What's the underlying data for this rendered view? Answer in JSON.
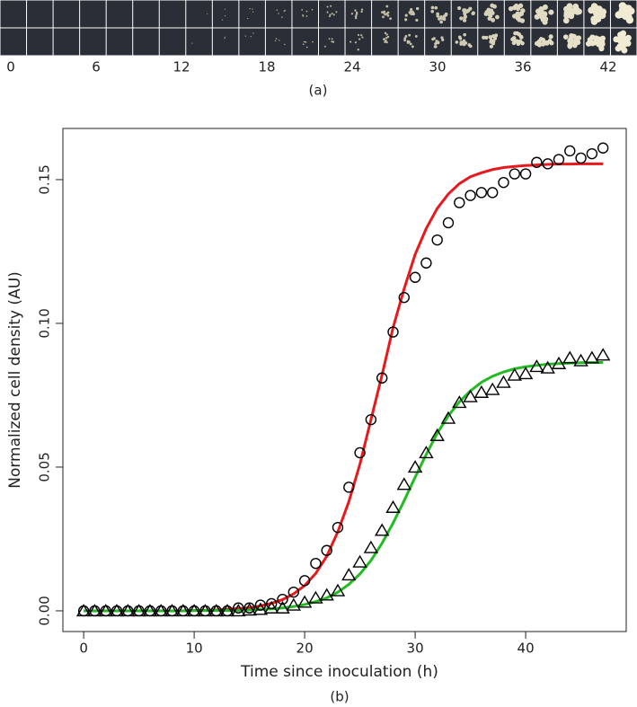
{
  "strip": {
    "labels": [
      "0",
      "6",
      "12",
      "18",
      "24",
      "30",
      "36",
      "42"
    ],
    "caption": "(a)"
  },
  "chart_data": {
    "type": "scatter",
    "caption": "(b)",
    "x_label": "Time since inoculation (h)",
    "y_label": "Normalized cell density (AU)",
    "x": [
      0,
      1,
      2,
      3,
      4,
      5,
      6,
      7,
      8,
      9,
      10,
      11,
      12,
      13,
      14,
      15,
      16,
      17,
      18,
      19,
      20,
      21,
      22,
      23,
      24,
      25,
      26,
      27,
      28,
      29,
      30,
      31,
      32,
      33,
      34,
      35,
      36,
      37,
      38,
      39,
      40,
      41,
      42,
      43,
      44,
      45,
      46,
      47
    ],
    "series": [
      {
        "color": "#000000",
        "marker": "circle",
        "values": [
          0,
          0,
          0,
          0,
          0,
          0,
          0,
          0,
          0,
          0,
          0,
          0,
          0,
          0,
          0.001,
          0.001,
          0.002,
          0.0025,
          0.004,
          0.0065,
          0.0105,
          0.0165,
          0.021,
          0.029,
          0.043,
          0.055,
          0.0665,
          0.081,
          0.097,
          0.109,
          0.116,
          0.121,
          0.129,
          0.135,
          0.142,
          0.1445,
          0.1455,
          0.1455,
          0.149,
          0.152,
          0.152,
          0.156,
          0.1555,
          0.157,
          0.16,
          0.1575,
          0.159,
          0.161
        ]
      },
      {
        "color": "#000000",
        "marker": "triangle",
        "values": [
          0,
          0,
          0,
          0,
          0,
          0,
          0,
          0,
          0,
          0,
          0,
          0,
          0,
          0,
          0,
          0.0003,
          0.0005,
          0.001,
          0.001,
          0.002,
          0.003,
          0.0045,
          0.0055,
          0.007,
          0.0125,
          0.017,
          0.022,
          0.028,
          0.036,
          0.044,
          0.05,
          0.055,
          0.061,
          0.067,
          0.0725,
          0.0745,
          0.076,
          0.077,
          0.0795,
          0.082,
          0.0825,
          0.085,
          0.0845,
          0.086,
          0.088,
          0.087,
          0.088,
          0.089
        ]
      },
      {
        "color": "#e8191c",
        "line": true,
        "values": [
          0,
          0,
          0,
          0,
          0,
          0,
          0,
          0,
          0,
          0,
          0.0001,
          0.0002,
          0.0003,
          0.0005,
          0.0008,
          0.0011,
          0.0017,
          0.0026,
          0.0039,
          0.0059,
          0.0088,
          0.013,
          0.019,
          0.0275,
          0.038,
          0.051,
          0.0665,
          0.082,
          0.0985,
          0.112,
          0.124,
          0.133,
          0.14,
          0.145,
          0.1486,
          0.151,
          0.1524,
          0.1535,
          0.1542,
          0.1546,
          0.1549,
          0.1551,
          0.1553,
          0.1554,
          0.1554,
          0.1555,
          0.1555,
          0.1555
        ]
      },
      {
        "color": "#22bb22",
        "line": true,
        "values": [
          0,
          0,
          0,
          0,
          0,
          0,
          0,
          0,
          0,
          0,
          0.0001,
          0.0001,
          0.0001,
          0.0001,
          0.0002,
          0.0003,
          0.0005,
          0.0007,
          0.001,
          0.0015,
          0.0022,
          0.0032,
          0.0045,
          0.0065,
          0.0092,
          0.0128,
          0.0175,
          0.0235,
          0.0305,
          0.0383,
          0.0465,
          0.0544,
          0.0618,
          0.0678,
          0.0727,
          0.0765,
          0.0795,
          0.0816,
          0.0831,
          0.0842,
          0.0849,
          0.0854,
          0.0858,
          0.086,
          0.0862,
          0.0863,
          0.0864,
          0.0864
        ]
      }
    ],
    "xlim": [
      -1.88,
      49.1
    ],
    "ylim": [
      -0.0072,
      0.1678
    ],
    "xticks": [
      0,
      10,
      20,
      30,
      40
    ],
    "yticks": [
      {
        "value": 0,
        "label": "0.00"
      },
      {
        "value": 0.05,
        "label": "0.05"
      },
      {
        "value": 0.1,
        "label": "0.10"
      },
      {
        "value": 0.15,
        "label": "0.15"
      }
    ]
  }
}
